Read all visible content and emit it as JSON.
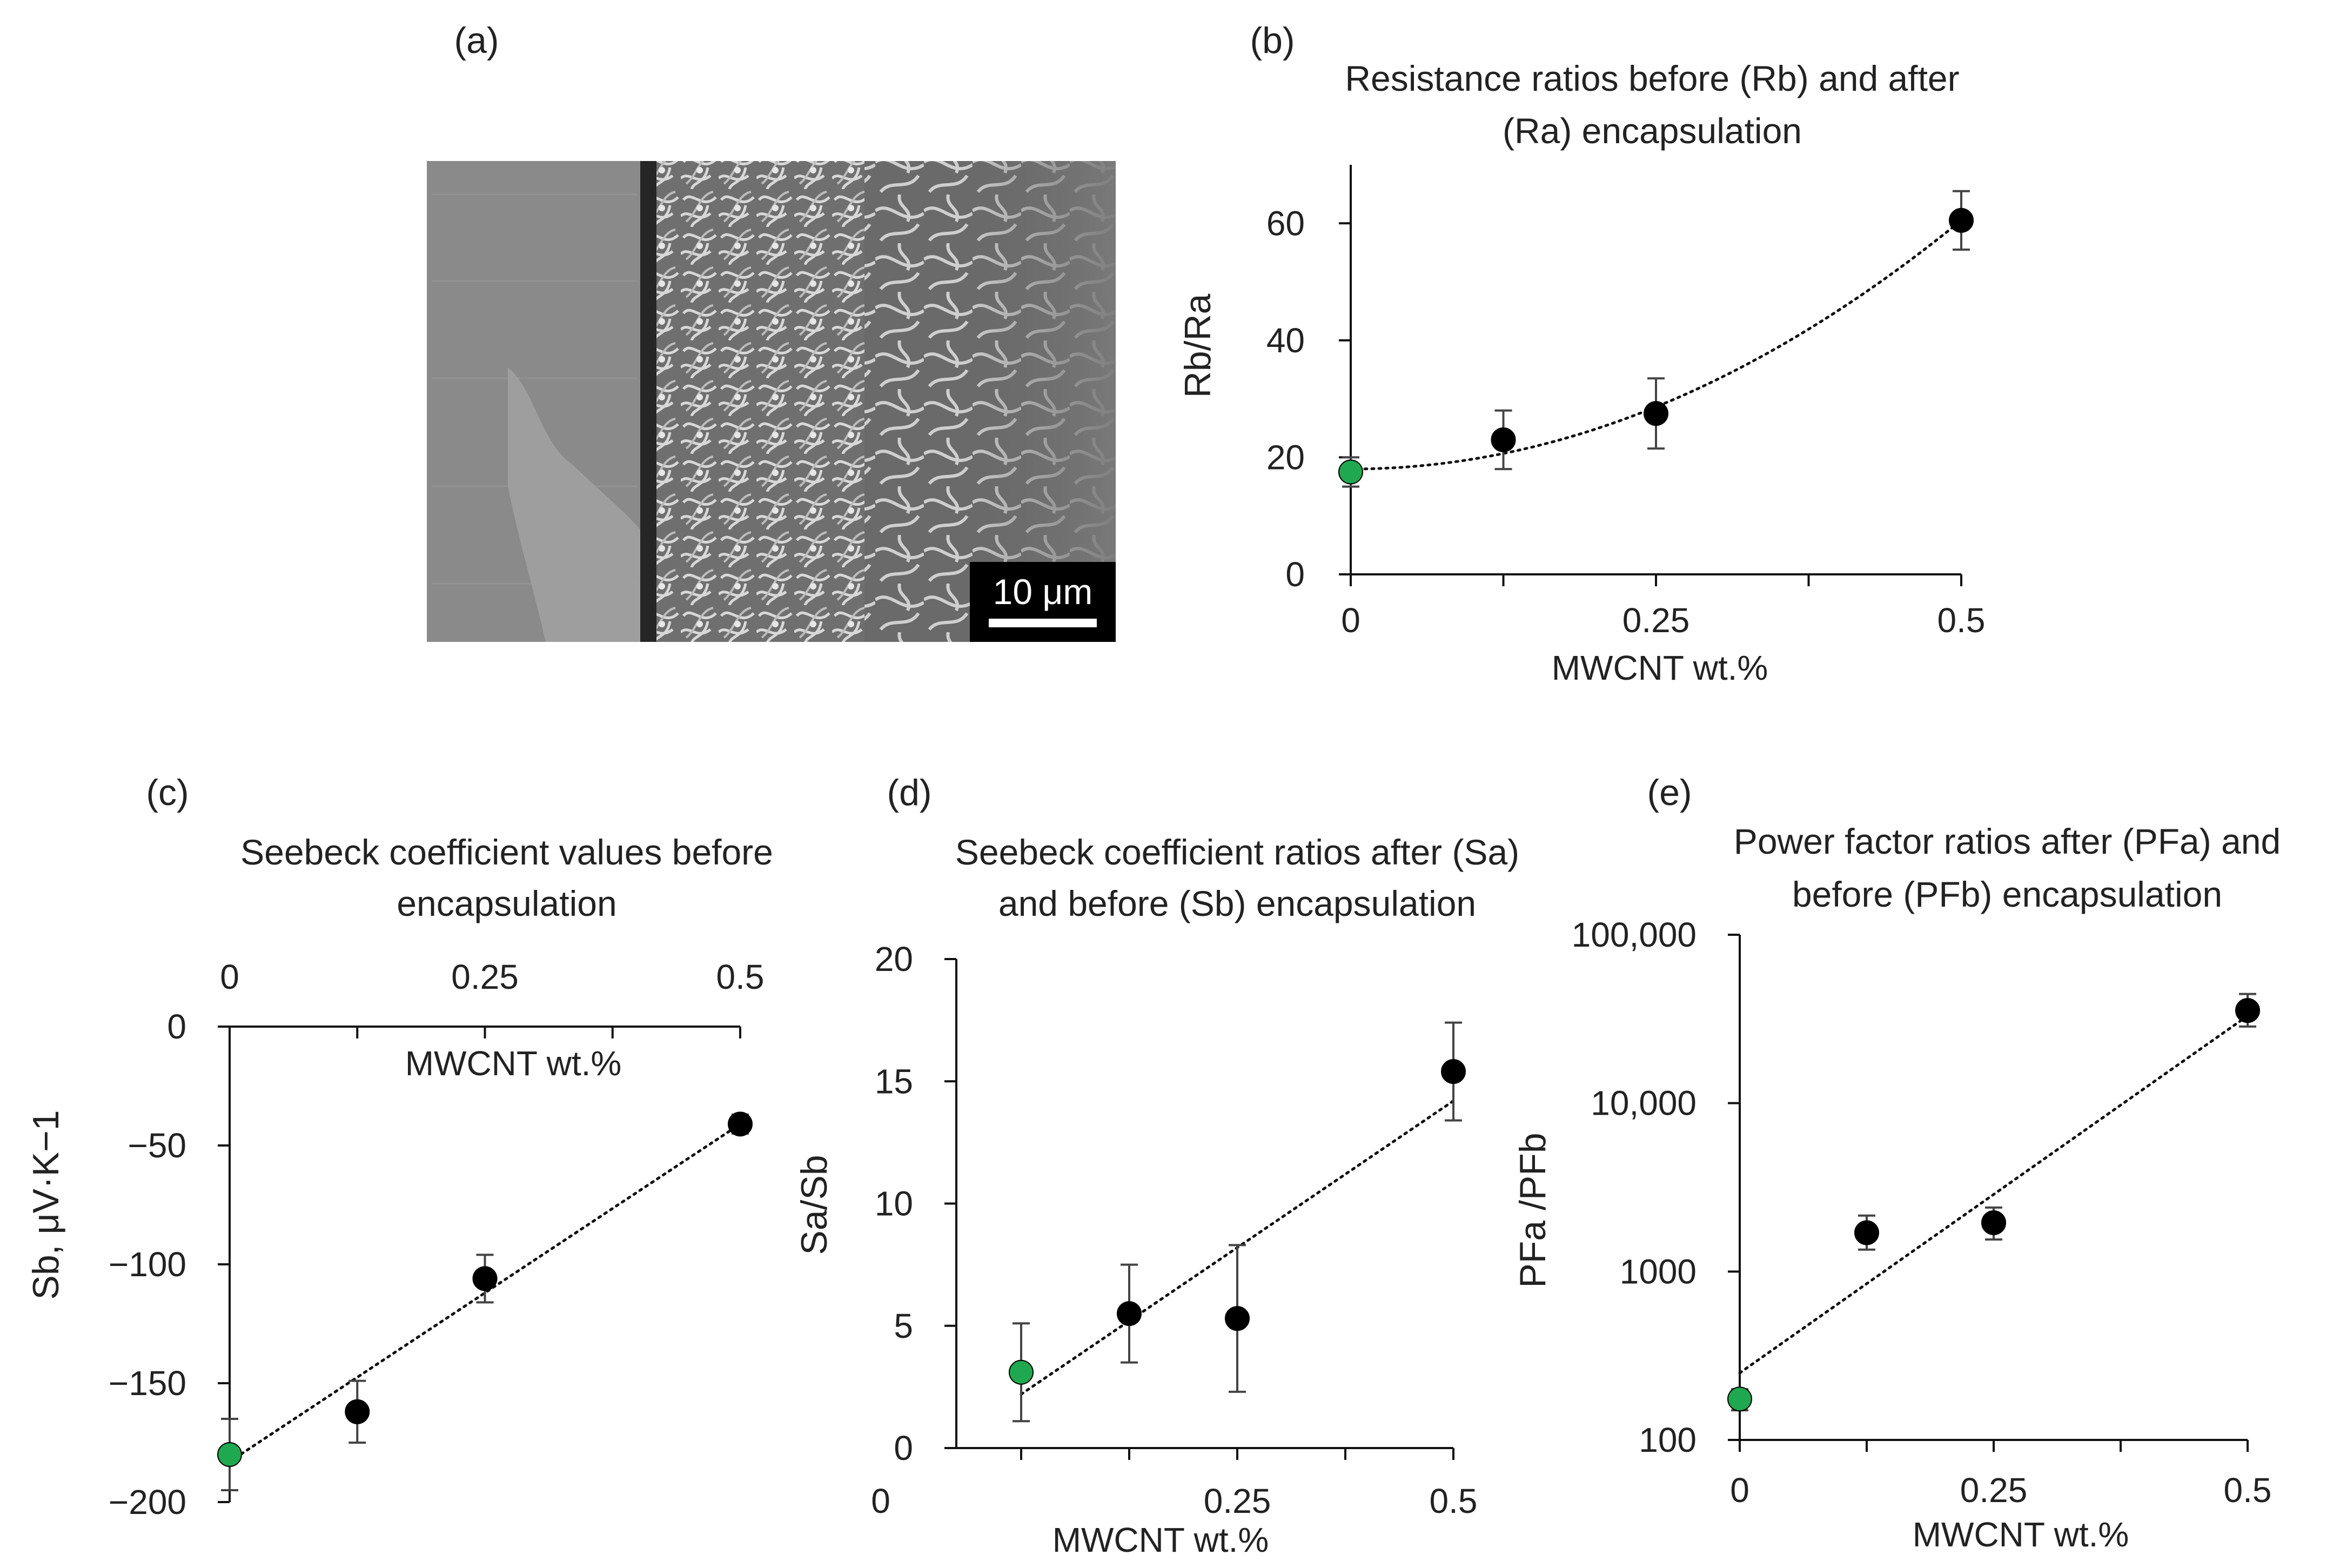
{
  "panels": {
    "a": {
      "letter": "(a)",
      "scale_bar": "10 μm"
    },
    "b": {
      "letter": "(b)"
    },
    "c": {
      "letter": "(c)"
    },
    "d": {
      "letter": "(d)"
    },
    "e": {
      "letter": "(e)"
    }
  },
  "colors": {
    "point": "#000000",
    "highlight_point": "#1fa84f",
    "trendline": "#111111"
  },
  "chart_data": [
    {
      "id": "b",
      "type": "scatter",
      "title_line1": "Resistance ratios before (Rb) and after",
      "title_line2": "(Ra) encapsulation",
      "xlabel": "MWCNT wt.%",
      "ylabel": "Rb/Ra",
      "xlim": [
        0,
        0.5
      ],
      "ylim": [
        0,
        70
      ],
      "x_ticks": [
        "0",
        "0.25",
        "0.5"
      ],
      "y_ticks": [
        "0",
        "20",
        "40",
        "60"
      ],
      "points": [
        {
          "x": 0,
          "y": 17.5,
          "err": 2.5,
          "highlight": true
        },
        {
          "x": 0.125,
          "y": 23,
          "err": 5
        },
        {
          "x": 0.25,
          "y": 27.5,
          "err": 6
        },
        {
          "x": 0.5,
          "y": 60.5,
          "err": 5
        }
      ],
      "trend": {
        "kind": "poly2",
        "coeffs": [
          18,
          0,
          170
        ]
      }
    },
    {
      "id": "c",
      "type": "scatter",
      "title_line1": "Seebeck coefficient values before",
      "title_line2": "encapsulation",
      "xlabel": "MWCNT wt.%",
      "ylabel": "Sb, μV·K−1",
      "x_axis_position": "top",
      "xlim": [
        0,
        0.5
      ],
      "ylim": [
        -200,
        0
      ],
      "x_ticks": [
        "0",
        "0.25",
        "0.5"
      ],
      "y_ticks": [
        "0",
        "−50",
        "−100",
        "−150",
        "−200"
      ],
      "points": [
        {
          "x": 0,
          "y": -180,
          "err": 15,
          "highlight": true
        },
        {
          "x": 0.125,
          "y": -162,
          "err": 13
        },
        {
          "x": 0.25,
          "y": -106,
          "err": 10
        },
        {
          "x": 0.5,
          "y": -41,
          "err": 4
        }
      ],
      "trend": {
        "kind": "linear",
        "x_range": [
          0,
          0.5
        ],
        "y_range": [
          -183,
          -41
        ]
      }
    },
    {
      "id": "d",
      "type": "scatter",
      "title_line1": "Seebeck coefficient ratios after (Sa)",
      "title_line2": "and before (Sb) encapsulation",
      "xlabel": "MWCNT wt.%",
      "ylabel": "Sa/Sb",
      "xlim": [
        -0.075,
        0.5
      ],
      "ylim": [
        0,
        20
      ],
      "x_ticks": [
        "0",
        "0.25",
        "0.5"
      ],
      "y_ticks": [
        "0",
        "5",
        "10",
        "15",
        "20"
      ],
      "points": [
        {
          "x": 0,
          "y": 3.1,
          "err": 2,
          "highlight": true
        },
        {
          "x": 0.125,
          "y": 5.5,
          "err": 2
        },
        {
          "x": 0.25,
          "y": 5.3,
          "err": 3
        },
        {
          "x": 0.5,
          "y": 15.4,
          "err": 2
        }
      ],
      "trend": {
        "kind": "linear",
        "x_range": [
          0,
          0.5
        ],
        "y_range": [
          2.2,
          14.2
        ]
      }
    },
    {
      "id": "e",
      "type": "scatter",
      "title_line1": "Power factor ratios after (PFa) and",
      "title_line2": "before (PFb) encapsulation",
      "xlabel": "MWCNT wt.%",
      "ylabel": "PFa /PFb",
      "y_scale": "log",
      "xlim": [
        0,
        0.5
      ],
      "ylim": [
        100,
        100000
      ],
      "x_ticks": [
        "0",
        "0.25",
        "0.5"
      ],
      "y_ticks": [
        "100",
        "1000",
        "10,000",
        "100,000"
      ],
      "points": [
        {
          "x": 0,
          "y": 175,
          "err_low": 25,
          "err_high": 25,
          "highlight": true
        },
        {
          "x": 0.125,
          "y": 1700,
          "err_low": 350,
          "err_high": 450
        },
        {
          "x": 0.25,
          "y": 1950,
          "err_low": 400,
          "err_high": 450
        },
        {
          "x": 0.5,
          "y": 35500,
          "err_low": 7000,
          "err_high": 9000
        }
      ],
      "trend": {
        "kind": "exp",
        "x_range": [
          0,
          0.5
        ],
        "y_range": [
          250,
          33000
        ]
      }
    }
  ]
}
